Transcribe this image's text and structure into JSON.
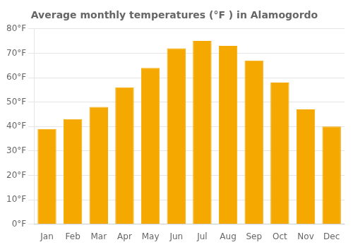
{
  "chart_data": {
    "type": "bar",
    "title": "Average monthly temperatures (°F ) in Alamogordo",
    "categories": [
      "Jan",
      "Feb",
      "Mar",
      "Apr",
      "May",
      "Jun",
      "Jul",
      "Aug",
      "Sep",
      "Oct",
      "Nov",
      "Dec"
    ],
    "values": [
      39,
      43,
      48,
      56,
      64,
      72,
      75,
      73,
      67,
      58,
      47,
      40
    ],
    "color": "#F5A800",
    "ylim": [
      0,
      80
    ],
    "yticks": [
      {
        "value": 0,
        "label": "0°F"
      },
      {
        "value": 10,
        "label": "10°F"
      },
      {
        "value": 20,
        "label": "20°F"
      },
      {
        "value": 30,
        "label": "30°F"
      },
      {
        "value": 40,
        "label": "40°F"
      },
      {
        "value": 50,
        "label": "50°F"
      },
      {
        "value": 60,
        "label": "60°F"
      },
      {
        "value": 70,
        "label": "70°F"
      },
      {
        "value": 80,
        "label": "80°F"
      }
    ],
    "grid": true
  }
}
